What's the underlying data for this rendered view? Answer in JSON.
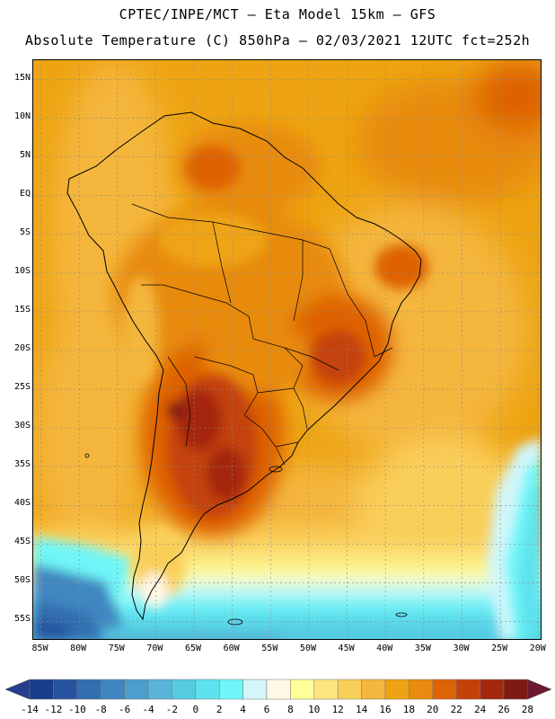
{
  "header": {
    "line1": "CPTEC/INPE/MCT –  Eta Model 15km – GFS",
    "line2": "Absolute Temperature (C) 850hPa – 02/03/2021 12UTC fct=252h"
  },
  "map": {
    "lat_labels": [
      "15N",
      "10N",
      "5N",
      "EQ",
      "5S",
      "10S",
      "15S",
      "20S",
      "25S",
      "30S",
      "35S",
      "40S",
      "45S",
      "50S",
      "55S"
    ],
    "lon_labels": [
      "85W",
      "80W",
      "75W",
      "70W",
      "65W",
      "60W",
      "55W",
      "50W",
      "45W",
      "40W",
      "35W",
      "30W",
      "25W",
      "20W"
    ],
    "lat_range": [
      17.5,
      -57.5
    ],
    "lon_range": [
      -86,
      -19.5
    ]
  },
  "colorbar": {
    "tick_labels": [
      "-14",
      "-12",
      "-10",
      "-8",
      "-6",
      "-4",
      "-2",
      "0",
      "2",
      "4",
      "6",
      "8",
      "10",
      "12",
      "14",
      "16",
      "18",
      "20",
      "22",
      "24",
      "26",
      "28"
    ],
    "colors": [
      "#1a3c8c",
      "#2654a0",
      "#326eb0",
      "#3f86c0",
      "#4d9ecc",
      "#5ab4d8",
      "#55cbe2",
      "#5de2ee",
      "#70f6f8",
      "#d2f6fa",
      "#fff8e6",
      "#ffff9a",
      "#fbe67e",
      "#f9cf5a",
      "#f4b63c",
      "#eea412",
      "#e88b0e",
      "#de6206",
      "#c4420a",
      "#a4280c",
      "#7e1a12"
    ],
    "under_color": "#263c8c",
    "over_color": "#6a1a2c"
  }
}
